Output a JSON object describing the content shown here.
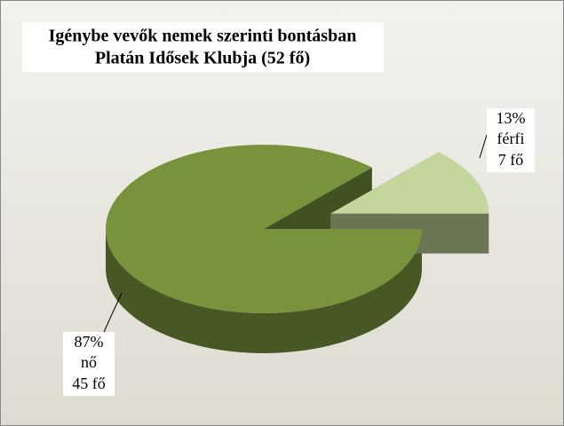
{
  "chart_data": {
    "type": "pie",
    "title": "Igénybe vevők nemek szerinti bontásban",
    "subtitle": "Platán Idősek Klubja (52 fő)",
    "categories": [
      "nő",
      "férfi"
    ],
    "values": [
      87,
      13
    ],
    "value_labels": [
      "87%",
      "13%"
    ],
    "count_labels": [
      "45 fő",
      "7 fő"
    ],
    "colors": [
      "#77933c",
      "#c3d69b"
    ],
    "exploded": [
      false,
      true
    ]
  }
}
